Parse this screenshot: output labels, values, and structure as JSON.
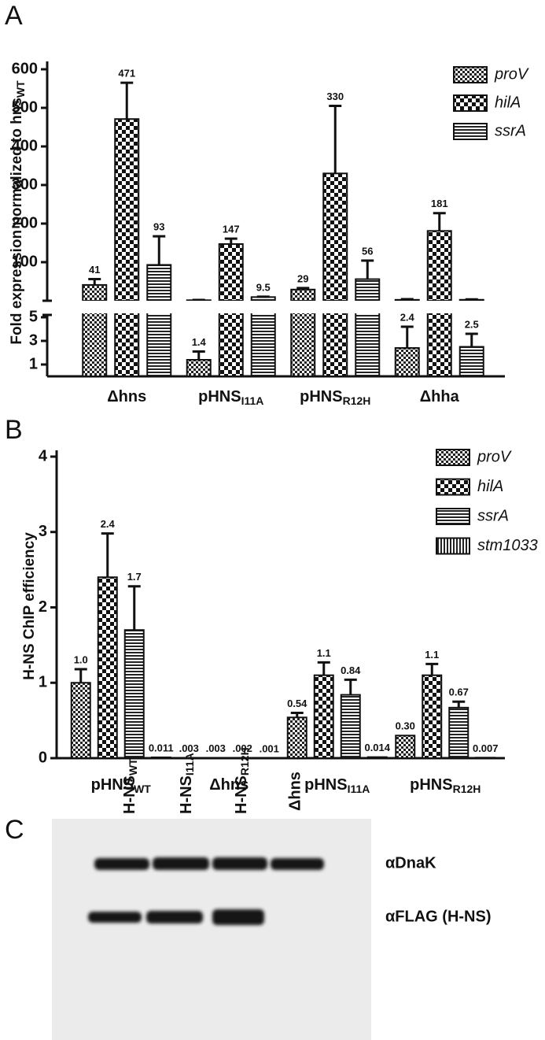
{
  "chart_data": [
    {
      "type": "bar",
      "panel_label": "A",
      "ylabel": "Fold expression normalized to hns",
      "ylabel_sub": "WT",
      "categories": [
        "Δhns",
        "pHNS",
        "pHNS",
        "Δhha"
      ],
      "category_subscripts": [
        null,
        "I11A",
        "R12H",
        null
      ],
      "y_segments": [
        {
          "ylim": [
            0,
            5
          ],
          "yticks": [
            1,
            3,
            5
          ]
        },
        {
          "ylim": [
            0,
            600
          ],
          "yticks": [
            100,
            200,
            300,
            400,
            500,
            600
          ]
        }
      ],
      "legend": "upper right",
      "series": [
        {
          "name": "proV",
          "pattern": "fine-check",
          "values": [
            41,
            1.4,
            29,
            2.4
          ],
          "errors": [
            15,
            0.7,
            4,
            1.8
          ]
        },
        {
          "name": "hilA",
          "pattern": "check",
          "values": [
            471,
            147,
            330,
            181
          ],
          "errors": [
            94,
            14,
            175,
            46
          ]
        },
        {
          "name": "ssrA",
          "pattern": "hstripe",
          "values": [
            93,
            9.5,
            56,
            2.5
          ],
          "errors": [
            74,
            1,
            48,
            1.1
          ]
        }
      ]
    },
    {
      "type": "bar",
      "panel_label": "B",
      "ylabel": "H-NS ChIP efficiency",
      "categories": [
        "pHNS",
        "Δhns",
        "pHNS",
        "pHNS"
      ],
      "category_subscripts": [
        "WT",
        null,
        "I11A",
        "R12H"
      ],
      "y_segments": [
        {
          "ylim": [
            0,
            4
          ],
          "yticks": [
            0,
            1,
            2,
            3,
            4
          ]
        }
      ],
      "legend": "upper right",
      "series": [
        {
          "name": "proV",
          "pattern": "fine-check",
          "values": [
            1.0,
            0.003,
            0.54,
            0.3
          ],
          "value_labels": [
            "1.0",
            ".003",
            "0.54",
            "0.30"
          ],
          "errors": [
            0.18,
            null,
            0.06,
            null
          ]
        },
        {
          "name": "hilA",
          "pattern": "check",
          "values": [
            2.4,
            0.003,
            1.1,
            1.1
          ],
          "value_labels": [
            "2.4",
            ".003",
            "1.1",
            "1.1"
          ],
          "errors": [
            0.58,
            null,
            0.17,
            0.15
          ]
        },
        {
          "name": "ssrA",
          "pattern": "hstripe",
          "values": [
            1.7,
            0.002,
            0.84,
            0.67
          ],
          "value_labels": [
            "1.7",
            ".002",
            "0.84",
            "0.67"
          ],
          "errors": [
            0.58,
            null,
            0.2,
            0.08
          ]
        },
        {
          "name": "stm1033",
          "pattern": "vstripe",
          "values": [
            0.011,
            0.001,
            0.014,
            0.007
          ],
          "value_labels": [
            "0.011",
            ".001",
            "0.014",
            "0.007"
          ],
          "errors": [
            null,
            null,
            null,
            null
          ]
        }
      ]
    }
  ],
  "blot": {
    "panel_label": "C",
    "lanes": [
      {
        "label": "H-NS",
        "sub": "WT"
      },
      {
        "label": "H-NS",
        "sub": "I11A"
      },
      {
        "label": "H-NS",
        "sub": "R12H"
      },
      {
        "label": "Δhns"
      }
    ],
    "rows": [
      "αDnaK",
      "αFLAG (H-NS)"
    ]
  }
}
